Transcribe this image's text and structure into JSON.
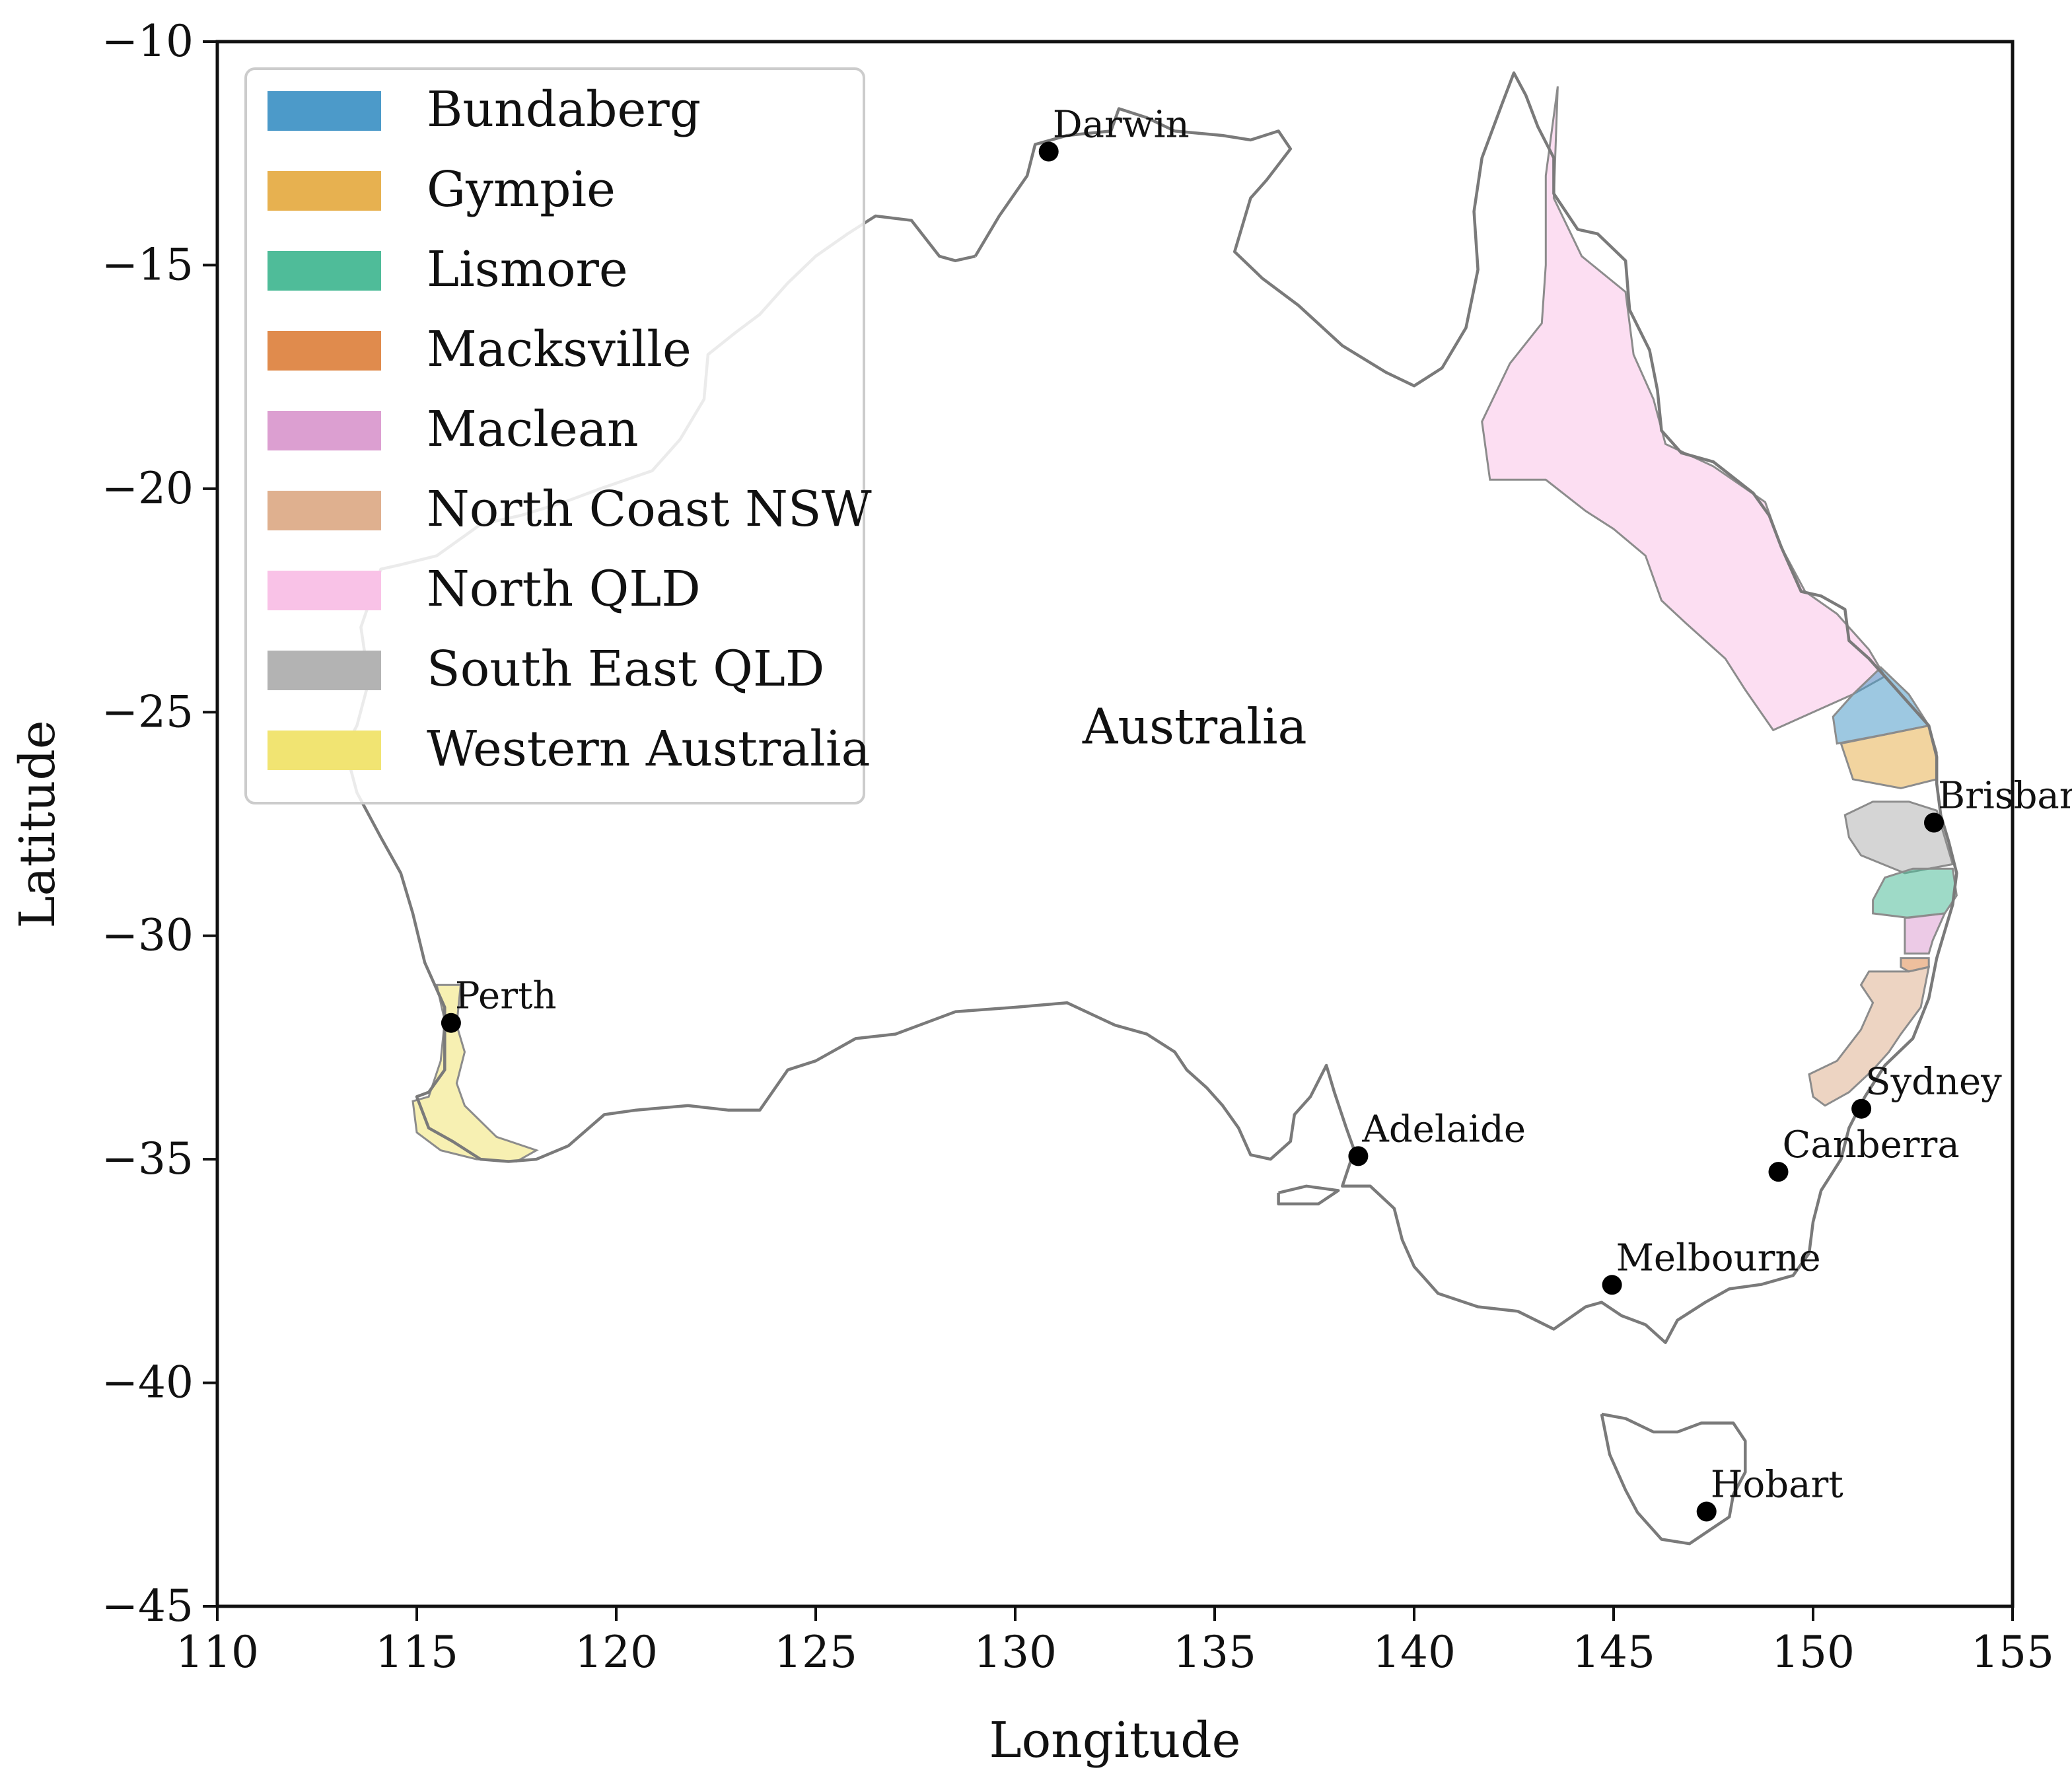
{
  "map": {
    "xlabel": "Longitude",
    "ylabel": "Latitude",
    "xlim": [
      110,
      155
    ],
    "ylim": [
      -45,
      -10
    ],
    "x_ticks": [
      110,
      115,
      120,
      125,
      130,
      135,
      140,
      145,
      150,
      155
    ],
    "y_ticks": [
      -10,
      -15,
      -20,
      -25,
      -30,
      -35,
      -40,
      -45
    ],
    "x_tick_labels": [
      "110",
      "115",
      "120",
      "125",
      "130",
      "135",
      "140",
      "145",
      "150",
      "155"
    ],
    "y_tick_labels": [
      "−10",
      "−15",
      "−20",
      "−25",
      "−30",
      "−35",
      "−40",
      "−45"
    ],
    "country_label": "Australia",
    "country_label_position": {
      "lon": 134.5,
      "lat": -25.7
    },
    "coastline_color": "#7a7a7a",
    "legend_location": "upper left"
  },
  "legend": {
    "items": [
      {
        "label": "Bundaberg",
        "color": "#4c9ac9"
      },
      {
        "label": "Gympie",
        "color": "#e7b150"
      },
      {
        "label": "Lismore",
        "color": "#4fbc99"
      },
      {
        "label": "Macksville",
        "color": "#e08b4d"
      },
      {
        "label": "Maclean",
        "color": "#dc9fd1"
      },
      {
        "label": "North Coast NSW",
        "color": "#dfb08f"
      },
      {
        "label": "North QLD",
        "color": "#f9c2e7"
      },
      {
        "label": "South East QLD",
        "color": "#b3b3b3"
      },
      {
        "label": "Western Australia",
        "color": "#f1e472"
      }
    ]
  },
  "cities": [
    {
      "name": "Darwin",
      "lon": 130.84,
      "lat": -12.46
    },
    {
      "name": "Brisbane",
      "lon": 153.03,
      "lat": -27.47
    },
    {
      "name": "Perth",
      "lon": 115.86,
      "lat": -31.95
    },
    {
      "name": "Sydney",
      "lon": 151.21,
      "lat": -33.87
    },
    {
      "name": "Adelaide",
      "lon": 138.6,
      "lat": -34.93
    },
    {
      "name": "Canberra",
      "lon": 149.13,
      "lat": -35.28
    },
    {
      "name": "Melbourne",
      "lon": 144.96,
      "lat": -37.81
    },
    {
      "name": "Hobart",
      "lon": 147.33,
      "lat": -42.88
    }
  ],
  "regions": [
    {
      "name": "North QLD",
      "color": "#f9c2e7",
      "coords": [
        [
          143.6,
          -11.0
        ],
        [
          143.5,
          -13.5
        ],
        [
          144.2,
          -14.8
        ],
        [
          145.3,
          -15.6
        ],
        [
          145.5,
          -17.0
        ],
        [
          146.0,
          -18.0
        ],
        [
          146.3,
          -19.0
        ],
        [
          147.5,
          -19.5
        ],
        [
          148.8,
          -20.3
        ],
        [
          149.2,
          -21.3
        ],
        [
          149.8,
          -22.3
        ],
        [
          150.6,
          -22.8
        ],
        [
          151.4,
          -23.6
        ],
        [
          151.8,
          -24.2
        ],
        [
          151.0,
          -24.6
        ],
        [
          150.0,
          -25.0
        ],
        [
          149.0,
          -25.4
        ],
        [
          148.3,
          -24.5
        ],
        [
          147.8,
          -23.8
        ],
        [
          146.8,
          -23.0
        ],
        [
          146.2,
          -22.5
        ],
        [
          145.8,
          -21.5
        ],
        [
          145.0,
          -20.9
        ],
        [
          144.3,
          -20.5
        ],
        [
          143.3,
          -19.8
        ],
        [
          141.9,
          -19.8
        ],
        [
          141.7,
          -18.5
        ],
        [
          142.4,
          -17.2
        ],
        [
          143.2,
          -16.3
        ],
        [
          143.3,
          -15.0
        ],
        [
          143.3,
          -13.0
        ]
      ]
    },
    {
      "name": "Bundaberg",
      "color": "#4c9ac9",
      "coords": [
        [
          151.7,
          -24.0
        ],
        [
          152.4,
          -24.6
        ],
        [
          152.9,
          -25.3
        ],
        [
          151.8,
          -25.5
        ],
        [
          150.6,
          -25.7
        ],
        [
          150.5,
          -25.1
        ],
        [
          151.0,
          -24.6
        ]
      ]
    },
    {
      "name": "Gympie",
      "color": "#e7b150",
      "coords": [
        [
          150.7,
          -25.7
        ],
        [
          151.8,
          -25.5
        ],
        [
          152.9,
          -25.3
        ],
        [
          153.1,
          -25.9
        ],
        [
          153.1,
          -26.5
        ],
        [
          152.2,
          -26.7
        ],
        [
          151.0,
          -26.5
        ]
      ]
    },
    {
      "name": "South East QLD",
      "color": "#b3b3b3",
      "coords": [
        [
          150.8,
          -27.3
        ],
        [
          151.5,
          -27.0
        ],
        [
          152.4,
          -27.0
        ],
        [
          153.1,
          -27.2
        ],
        [
          153.3,
          -27.8
        ],
        [
          153.5,
          -28.4
        ],
        [
          152.3,
          -28.6
        ],
        [
          151.2,
          -28.2
        ],
        [
          150.9,
          -27.8
        ]
      ]
    },
    {
      "name": "Lismore",
      "color": "#4fbc99",
      "coords": [
        [
          151.8,
          -28.7
        ],
        [
          152.5,
          -28.5
        ],
        [
          153.5,
          -28.5
        ],
        [
          153.6,
          -29.1
        ],
        [
          153.3,
          -29.5
        ],
        [
          152.4,
          -29.6
        ],
        [
          151.5,
          -29.5
        ],
        [
          151.5,
          -29.2
        ]
      ]
    },
    {
      "name": "Maclean",
      "color": "#dc9fd1",
      "coords": [
        [
          152.3,
          -29.6
        ],
        [
          153.3,
          -29.5
        ],
        [
          153.0,
          -30.1
        ],
        [
          152.9,
          -30.4
        ],
        [
          152.3,
          -30.4
        ]
      ]
    },
    {
      "name": "Macksville",
      "color": "#e08b4d",
      "coords": [
        [
          152.2,
          -30.5
        ],
        [
          152.9,
          -30.5
        ],
        [
          152.9,
          -30.7
        ],
        [
          152.4,
          -30.8
        ],
        [
          152.2,
          -30.7
        ]
      ]
    },
    {
      "name": "North Coast NSW",
      "color": "#dfb08f",
      "coords": [
        [
          151.4,
          -30.8
        ],
        [
          152.4,
          -30.8
        ],
        [
          152.9,
          -30.7
        ],
        [
          152.7,
          -31.6
        ],
        [
          152.2,
          -32.2
        ],
        [
          151.9,
          -32.6
        ],
        [
          151.5,
          -33.0
        ],
        [
          150.9,
          -33.5
        ],
        [
          150.3,
          -33.8
        ],
        [
          150.0,
          -33.6
        ],
        [
          149.9,
          -33.1
        ],
        [
          150.6,
          -32.8
        ],
        [
          151.2,
          -32.1
        ],
        [
          151.5,
          -31.5
        ],
        [
          151.2,
          -31.1
        ]
      ]
    },
    {
      "name": "Western Australia",
      "color": "#f1e472",
      "coords": [
        [
          115.5,
          -31.1
        ],
        [
          116.1,
          -31.1
        ],
        [
          116.0,
          -32.0
        ],
        [
          116.2,
          -32.6
        ],
        [
          116.0,
          -33.3
        ],
        [
          116.2,
          -33.8
        ],
        [
          117.0,
          -34.5
        ],
        [
          118.0,
          -34.8
        ],
        [
          117.5,
          -35.05
        ],
        [
          116.5,
          -35.0
        ],
        [
          115.6,
          -34.8
        ],
        [
          115.0,
          -34.4
        ],
        [
          114.9,
          -33.7
        ],
        [
          115.3,
          -33.6
        ],
        [
          115.6,
          -32.8
        ],
        [
          115.7,
          -31.9
        ]
      ]
    }
  ],
  "coastlines": {
    "mainland": [
      [
        129.0,
        -14.8
      ],
      [
        129.6,
        -13.9
      ],
      [
        130.3,
        -13.0
      ],
      [
        130.5,
        -12.3
      ],
      [
        130.9,
        -12.2
      ],
      [
        131.3,
        -12.1
      ],
      [
        132.4,
        -12.0
      ],
      [
        132.6,
        -11.5
      ],
      [
        133.3,
        -11.7
      ],
      [
        134.0,
        -12.0
      ],
      [
        135.2,
        -12.1
      ],
      [
        135.9,
        -12.2
      ],
      [
        136.6,
        -12.0
      ],
      [
        136.9,
        -12.4
      ],
      [
        136.3,
        -13.1
      ],
      [
        135.9,
        -13.5
      ],
      [
        135.5,
        -14.7
      ],
      [
        136.2,
        -15.3
      ],
      [
        137.1,
        -15.9
      ],
      [
        138.2,
        -16.8
      ],
      [
        139.3,
        -17.4
      ],
      [
        140.0,
        -17.7
      ],
      [
        140.7,
        -17.3
      ],
      [
        141.3,
        -16.4
      ],
      [
        141.6,
        -15.1
      ],
      [
        141.5,
        -13.8
      ],
      [
        141.7,
        -12.6
      ],
      [
        142.2,
        -11.4
      ],
      [
        142.5,
        -10.7
      ],
      [
        142.8,
        -11.2
      ],
      [
        143.1,
        -11.9
      ],
      [
        143.5,
        -12.6
      ],
      [
        143.5,
        -13.4
      ],
      [
        144.1,
        -14.2
      ],
      [
        144.6,
        -14.3
      ],
      [
        145.3,
        -14.9
      ],
      [
        145.4,
        -16.0
      ],
      [
        145.9,
        -16.9
      ],
      [
        146.1,
        -17.8
      ],
      [
        146.2,
        -18.7
      ],
      [
        146.7,
        -19.2
      ],
      [
        147.5,
        -19.4
      ],
      [
        148.5,
        -20.1
      ],
      [
        148.9,
        -20.6
      ],
      [
        149.2,
        -21.3
      ],
      [
        149.7,
        -22.3
      ],
      [
        150.2,
        -22.4
      ],
      [
        150.8,
        -22.7
      ],
      [
        150.9,
        -23.4
      ],
      [
        151.4,
        -23.8
      ],
      [
        152.1,
        -24.5
      ],
      [
        152.9,
        -25.3
      ],
      [
        153.1,
        -26.0
      ],
      [
        153.1,
        -26.6
      ],
      [
        153.2,
        -27.3
      ],
      [
        153.4,
        -27.9
      ],
      [
        153.6,
        -28.6
      ],
      [
        153.5,
        -29.3
      ],
      [
        153.3,
        -29.9
      ],
      [
        153.1,
        -30.5
      ],
      [
        152.9,
        -31.4
      ],
      [
        152.5,
        -32.3
      ],
      [
        151.8,
        -32.9
      ],
      [
        151.3,
        -33.6
      ],
      [
        150.9,
        -34.3
      ],
      [
        150.7,
        -35.0
      ],
      [
        150.2,
        -35.7
      ],
      [
        150.0,
        -36.4
      ],
      [
        149.9,
        -37.1
      ],
      [
        149.5,
        -37.6
      ],
      [
        148.7,
        -37.8
      ],
      [
        147.9,
        -37.9
      ],
      [
        147.3,
        -38.2
      ],
      [
        146.6,
        -38.6
      ],
      [
        146.3,
        -39.1
      ],
      [
        145.8,
        -38.7
      ],
      [
        145.2,
        -38.5
      ],
      [
        144.7,
        -38.2
      ],
      [
        144.3,
        -38.3
      ],
      [
        143.5,
        -38.8
      ],
      [
        142.6,
        -38.4
      ],
      [
        141.6,
        -38.3
      ],
      [
        140.6,
        -38.0
      ],
      [
        140.0,
        -37.4
      ],
      [
        139.7,
        -36.8
      ],
      [
        139.5,
        -36.1
      ],
      [
        138.9,
        -35.6
      ],
      [
        138.2,
        -35.6
      ],
      [
        138.5,
        -34.8
      ],
      [
        138.3,
        -34.3
      ],
      [
        138.0,
        -33.5
      ],
      [
        137.8,
        -32.9
      ],
      [
        137.4,
        -33.6
      ],
      [
        137.0,
        -34.0
      ],
      [
        136.9,
        -34.6
      ],
      [
        136.4,
        -35.0
      ],
      [
        135.9,
        -34.9
      ],
      [
        135.6,
        -34.3
      ],
      [
        135.2,
        -33.8
      ],
      [
        134.8,
        -33.4
      ],
      [
        134.3,
        -33.0
      ],
      [
        134.0,
        -32.6
      ],
      [
        133.3,
        -32.2
      ],
      [
        132.5,
        -32.0
      ],
      [
        131.3,
        -31.5
      ],
      [
        130.0,
        -31.6
      ],
      [
        128.5,
        -31.7
      ],
      [
        127.0,
        -32.2
      ],
      [
        126.0,
        -32.3
      ],
      [
        125.0,
        -32.8
      ],
      [
        124.3,
        -33.0
      ],
      [
        123.6,
        -33.9
      ],
      [
        122.8,
        -33.9
      ],
      [
        121.8,
        -33.8
      ],
      [
        120.5,
        -33.9
      ],
      [
        119.7,
        -34.0
      ],
      [
        118.8,
        -34.7
      ],
      [
        118.0,
        -35.0
      ],
      [
        117.3,
        -35.05
      ],
      [
        116.6,
        -35.0
      ],
      [
        115.9,
        -34.6
      ],
      [
        115.3,
        -34.3
      ],
      [
        115.0,
        -33.6
      ],
      [
        115.3,
        -33.5
      ],
      [
        115.7,
        -33.0
      ],
      [
        115.7,
        -32.3
      ],
      [
        115.7,
        -31.6
      ],
      [
        115.2,
        -30.6
      ],
      [
        114.9,
        -29.5
      ],
      [
        114.6,
        -28.6
      ],
      [
        114.1,
        -27.8
      ],
      [
        113.5,
        -26.8
      ],
      [
        113.2,
        -25.8
      ],
      [
        113.5,
        -25.3
      ],
      [
        113.8,
        -24.3
      ],
      [
        113.6,
        -23.1
      ],
      [
        114.1,
        -21.8
      ],
      [
        114.6,
        -21.7
      ],
      [
        115.5,
        -21.5
      ],
      [
        116.6,
        -20.8
      ],
      [
        117.6,
        -20.6
      ],
      [
        118.7,
        -20.3
      ],
      [
        119.6,
        -20.0
      ],
      [
        120.9,
        -19.6
      ],
      [
        121.6,
        -18.9
      ],
      [
        122.2,
        -18.0
      ],
      [
        122.3,
        -17.0
      ],
      [
        123.0,
        -16.5
      ],
      [
        123.6,
        -16.1
      ],
      [
        124.3,
        -15.4
      ],
      [
        125.0,
        -14.8
      ],
      [
        125.8,
        -14.3
      ],
      [
        126.5,
        -13.9
      ],
      [
        127.4,
        -14.0
      ],
      [
        128.1,
        -14.8
      ],
      [
        128.5,
        -14.9
      ],
      [
        129.0,
        -14.8
      ]
    ],
    "tasmania": [
      [
        144.7,
        -40.7
      ],
      [
        145.3,
        -40.8
      ],
      [
        146.0,
        -41.1
      ],
      [
        146.6,
        -41.1
      ],
      [
        147.2,
        -40.9
      ],
      [
        148.0,
        -40.9
      ],
      [
        148.3,
        -41.3
      ],
      [
        148.3,
        -42.0
      ],
      [
        148.0,
        -42.5
      ],
      [
        147.9,
        -43.0
      ],
      [
        147.4,
        -43.3
      ],
      [
        146.9,
        -43.6
      ],
      [
        146.2,
        -43.5
      ],
      [
        145.6,
        -42.9
      ],
      [
        145.3,
        -42.4
      ],
      [
        144.9,
        -41.6
      ],
      [
        144.7,
        -40.7
      ]
    ],
    "kangaroo_island": [
      [
        136.6,
        -35.75
      ],
      [
        137.3,
        -35.6
      ],
      [
        138.1,
        -35.7
      ],
      [
        137.6,
        -36.0
      ],
      [
        136.6,
        -36.0
      ],
      [
        136.6,
        -35.75
      ]
    ]
  }
}
